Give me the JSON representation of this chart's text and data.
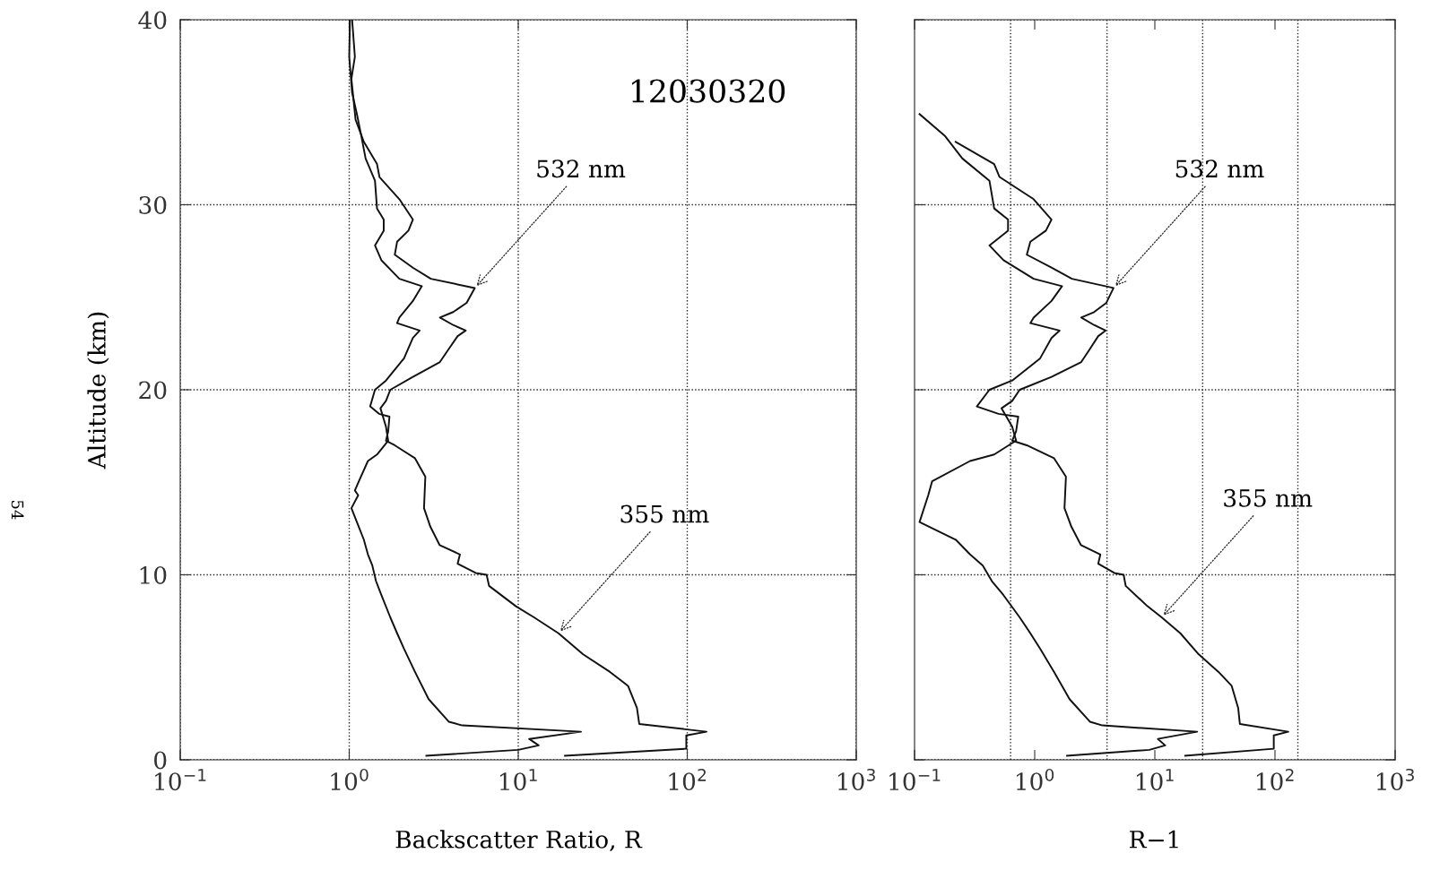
{
  "chart_data": [
    {
      "type": "line",
      "xlabel": "Backscatter Ratio, R",
      "ylabel": "Altitude (km)",
      "log": "x",
      "xlim": [
        0.1,
        1000
      ],
      "ylim": [
        0,
        40
      ],
      "xticks": [
        {
          "value": 0.1,
          "label": "10$^{−1}$"
        },
        {
          "value": 1,
          "label": "10$^{0}$"
        },
        {
          "value": 10,
          "label": "10$^{1}$"
        },
        {
          "value": 100,
          "label": "10$^{2}$"
        },
        {
          "value": 1000,
          "label": "10$^{3}$"
        }
      ],
      "yticks": [
        0,
        10,
        20,
        30,
        40
      ],
      "grid": true,
      "line_style": "solid",
      "marker": "none",
      "series": [
        {
          "color": "#111111",
          "x": [
            1.04,
            1.08,
            1.03,
            1.09,
            1.22,
            1.46,
            1.51,
            1.98,
            2.38,
            2.24,
            1.92,
            1.86,
            2.38,
            3.04,
            5.53,
            4.95,
            4.12,
            3.44,
            4.12,
            4.89,
            4.38,
            3.88,
            3.44,
            2.38,
            1.75,
            1.65,
            1.53,
            1.65,
            1.7,
            1.46,
            1.29,
            1.14,
            1.08,
            1.13,
            1.03,
            1.11,
            1.22,
            1.29,
            1.37,
            1.44,
            1.55,
            1.75,
            1.92,
            2.11,
            2.45,
            2.95,
            3.88,
            4.66,
            23.5,
            11.6,
            13.2,
            10.0,
            2.86
          ],
          "values": [
            40,
            38.0,
            36.8,
            34.6,
            33.4,
            32.2,
            31.5,
            30.3,
            29.2,
            28.6,
            28.0,
            27.3,
            26.6,
            26.0,
            25.5,
            24.7,
            24.2,
            23.9,
            23.5,
            23.2,
            22.9,
            22.2,
            21.5,
            20.7,
            20.0,
            19.4,
            19.0,
            18.0,
            17.25,
            16.5,
            16.15,
            15.05,
            14.56,
            14.3,
            13.6,
            12.85,
            11.9,
            11.1,
            10.5,
            9.66,
            8.9,
            7.7,
            6.84,
            6.0,
            4.75,
            3.28,
            2.06,
            1.86,
            1.52,
            1.13,
            0.78,
            0.54,
            0.22
          ]
        },
        {
          "color": "#111111",
          "x": [
            1.01,
            1.0,
            1.04,
            1.11,
            1.18,
            1.25,
            1.42,
            1.46,
            1.6,
            1.6,
            1.42,
            1.55,
            1.98,
            2.69,
            2.38,
            1.98,
            1.92,
            2.61,
            2.38,
            2.11,
            1.65,
            1.42,
            1.33,
            1.5,
            1.73,
            1.7,
            1.65,
            1.86,
            2.45,
            2.82,
            2.77,
            3.02,
            3.43,
            4.52,
            4.38,
            5.6,
            6.5,
            6.72,
            9.69,
            12.4,
            17.3,
            24.2,
            34.9,
            44.6,
            50.4,
            52,
            130,
            98.7,
            98.7,
            18.9
          ],
          "values": [
            40,
            38,
            36.05,
            34.9,
            33.7,
            32.5,
            31.3,
            29.8,
            29.2,
            28.6,
            27.8,
            27.0,
            26.0,
            25.6,
            24.8,
            23.9,
            23.6,
            23.2,
            22.8,
            21.7,
            20.5,
            20.0,
            19.1,
            18.7,
            18.55,
            17.75,
            17.25,
            17.0,
            16.3,
            15.3,
            13.6,
            12.6,
            11.6,
            11.1,
            10.6,
            10.1,
            10.0,
            9.4,
            8.3,
            7.7,
            6.84,
            5.7,
            4.75,
            4.0,
            2.8,
            1.94,
            1.52,
            1.32,
            0.6,
            0.22
          ]
        }
      ],
      "annotations": [
        "12030320",
        "54",
        {
          "text": "532 nm",
          "x": 5.53,
          "y": 25.5
        },
        {
          "text": "355 nm",
          "x": 17.3,
          "y": 6.84
        }
      ]
    },
    {
      "type": "line",
      "xlabel": "R−1",
      "log": "x",
      "xlim": [
        0.1,
        1000
      ],
      "ylim": [
        0,
        40
      ],
      "xticks": [
        {
          "value": 0.1,
          "label": "10$^{−1}$"
        },
        {
          "value": 1,
          "label": "10$^{0}$"
        },
        {
          "value": 10,
          "label": "10$^{1}$"
        },
        {
          "value": 100,
          "label": "10$^{2}$"
        },
        {
          "value": 1000,
          "label": "10$^{3}$"
        }
      ],
      "yticks": [
        0,
        10,
        20,
        30,
        40
      ],
      "tick_labels": "x",
      "grid": "y",
      "line_style": "solid",
      "marker": "none",
      "ref_lines": [
        {
          "axis": "x",
          "value": 0.63,
          "line_style": "dotted"
        },
        {
          "axis": "x",
          "value": 4,
          "line_style": "dotted"
        },
        {
          "axis": "x",
          "value": 25,
          "line_style": "dotted"
        },
        {
          "axis": "x",
          "value": 155,
          "line_style": "dotted"
        }
      ],
      "series": [
        {
          "color": "#111111",
          "x": [
            0.22,
            0.46,
            0.51,
            0.98,
            1.38,
            1.24,
            0.92,
            0.86,
            1.38,
            2.04,
            4.53,
            3.95,
            3.12,
            2.44,
            3.12,
            3.89,
            3.38,
            2.88,
            2.44,
            1.38,
            0.75,
            0.65,
            0.53,
            0.65,
            0.7,
            0.46,
            0.29,
            0.14,
            0.13,
            0.11,
            0.22,
            0.29,
            0.37,
            0.44,
            0.55,
            0.75,
            0.92,
            1.11,
            1.45,
            1.95,
            2.88,
            3.66,
            22.5,
            10.6,
            12.2,
            9.0,
            1.86
          ],
          "values": [
            33.4,
            32.2,
            31.5,
            30.3,
            29.2,
            28.6,
            28.0,
            27.3,
            26.6,
            26.0,
            25.5,
            24.7,
            24.2,
            23.9,
            23.5,
            23.2,
            22.9,
            22.2,
            21.5,
            20.7,
            20.0,
            19.4,
            19.0,
            18.0,
            17.25,
            16.5,
            16.15,
            15.05,
            14.3,
            12.85,
            11.9,
            11.1,
            10.5,
            9.66,
            8.9,
            7.7,
            6.84,
            6.0,
            4.75,
            3.28,
            2.06,
            1.86,
            1.52,
            1.13,
            0.78,
            0.54,
            0.22
          ]
        },
        {
          "color": "#111111",
          "x": [
            0.11,
            0.18,
            0.25,
            0.42,
            0.46,
            0.6,
            0.6,
            0.42,
            0.55,
            0.98,
            1.69,
            1.38,
            0.98,
            0.92,
            1.61,
            1.38,
            1.11,
            0.65,
            0.42,
            0.33,
            0.5,
            0.73,
            0.7,
            0.65,
            0.86,
            1.45,
            1.82,
            1.77,
            2.02,
            2.43,
            3.52,
            3.38,
            4.6,
            5.5,
            5.72,
            8.69,
            11.4,
            16.3,
            23.2,
            33.9,
            43.6,
            49.4,
            51,
            129,
            97.7,
            97.7,
            17.9
          ],
          "values": [
            34.9,
            33.7,
            32.5,
            31.3,
            29.8,
            29.2,
            28.6,
            27.8,
            27.0,
            26.0,
            25.6,
            24.8,
            23.9,
            23.6,
            23.2,
            22.8,
            21.7,
            20.5,
            20.0,
            19.1,
            18.7,
            18.55,
            17.75,
            17.25,
            17.0,
            16.3,
            15.3,
            13.6,
            12.6,
            11.6,
            11.1,
            10.6,
            10.1,
            10.0,
            9.4,
            8.3,
            7.7,
            6.84,
            5.7,
            4.75,
            4.0,
            2.8,
            1.94,
            1.52,
            1.32,
            0.6,
            0.22
          ]
        }
      ],
      "annotations": [
        {
          "text": "532 nm",
          "x": 4.53,
          "y": 25.5
        },
        {
          "text": "355 nm",
          "x": 11.4,
          "y": 7.7
        }
      ]
    }
  ]
}
